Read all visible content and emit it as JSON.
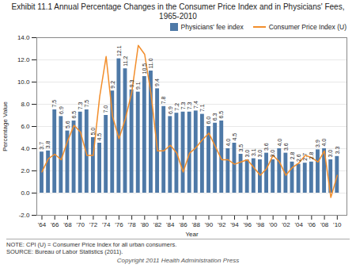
{
  "chart_data": {
    "type": "bar",
    "title": "Exhibit 11.1 Annual Percentage Changes in the Consumer Price Index and in Physicians' Fees,",
    "subtitle": "1965-2010",
    "xlabel": "Year",
    "ylabel": "Percentage Value",
    "annotations": [
      "NOTE: CPI (U) = Consumer Price Index for all urban consumers.",
      "SOURCE: Bureau of Labor Statistics (2011).",
      "Copyright 2011 Health Administration Press"
    ],
    "x": [
      1964,
      1965,
      1966,
      1967,
      1968,
      1969,
      1970,
      1971,
      1972,
      1973,
      1974,
      1975,
      1976,
      1977,
      1978,
      1979,
      1980,
      1981,
      1982,
      1983,
      1984,
      1985,
      1986,
      1987,
      1988,
      1989,
      1990,
      1991,
      1992,
      1993,
      1994,
      1995,
      1996,
      1997,
      1998,
      1999,
      2000,
      2001,
      2002,
      2003,
      2004,
      2005,
      2006,
      2007,
      2008,
      2009,
      2010
    ],
    "series": [
      {
        "name": "Physicians' fee index",
        "type": "bar",
        "values": [
          3.7,
          3.8,
          7.5,
          6.9,
          5.6,
          6.5,
          7.3,
          7.5,
          5.0,
          4.5,
          7.0,
          9.2,
          12.1,
          11.2,
          9.3,
          9.1,
          10.5,
          11.0,
          9.4,
          7.8,
          6.9,
          7.2,
          7.3,
          7.3,
          7.4,
          7.1,
          6.0,
          6.3,
          6.5,
          4.0,
          4.5,
          3.5,
          3.0,
          3.1,
          3.0,
          3.6,
          3.0,
          4.0,
          3.6,
          2.8,
          2.6,
          2.7,
          2.8,
          3.9,
          4.0,
          3.0,
          3.3
        ],
        "value_labels": [
          "3.7",
          "3.8",
          "7.5",
          "6.9",
          "5.6",
          "6.5",
          "7.3",
          "7.5",
          "5.0",
          "4.5",
          "7.0",
          "9.2",
          "12.1",
          "11.2",
          "9.3",
          "9.1",
          "10.5",
          "11.0",
          "9.4",
          "7.8",
          "6.9",
          "7.2",
          "7.3",
          "7.3",
          "7.4",
          "7.1",
          "6.0",
          "6.3",
          "6.5",
          "4.0",
          "4.5",
          "3.5",
          "3.0",
          "3.1",
          "3.0",
          "3.6",
          "3.0",
          "4.0",
          "3.6",
          "2.8",
          "2.6",
          "2.7",
          "2.8",
          "3.9",
          "4.0",
          "3.0",
          "3.3"
        ]
      },
      {
        "name": "Consumer Price Index (U)",
        "type": "line",
        "values": [
          1.9,
          3.1,
          3.5,
          3.0,
          4.7,
          6.1,
          5.5,
          3.4,
          3.4,
          8.7,
          12.3,
          6.9,
          4.9,
          6.7,
          9.1,
          13.3,
          12.5,
          8.9,
          3.8,
          3.8,
          4.3,
          3.6,
          1.9,
          3.6,
          4.1,
          4.8,
          5.4,
          4.2,
          3.0,
          3.0,
          2.6,
          2.8,
          3.0,
          2.3,
          1.6,
          2.2,
          3.4,
          2.8,
          1.6,
          2.3,
          2.7,
          3.4,
          3.2,
          2.8,
          3.8,
          -0.4,
          1.6
        ]
      }
    ],
    "xlim": [
      1963.2,
      2011.5
    ],
    "xticks": [
      {
        "value": 1964,
        "label": "'64"
      },
      {
        "value": 1966,
        "label": "'66"
      },
      {
        "value": 1968,
        "label": "'68"
      },
      {
        "value": 1970,
        "label": "'70"
      },
      {
        "value": 1972,
        "label": "'72"
      },
      {
        "value": 1974,
        "label": "'74"
      },
      {
        "value": 1976,
        "label": "'76"
      },
      {
        "value": 1978,
        "label": "'78"
      },
      {
        "value": 1980,
        "label": "'80"
      },
      {
        "value": 1982,
        "label": "'82"
      },
      {
        "value": 1984,
        "label": "'84"
      },
      {
        "value": 1986,
        "label": "'86"
      },
      {
        "value": 1988,
        "label": "'88"
      },
      {
        "value": 1990,
        "label": "'90"
      },
      {
        "value": 1992,
        "label": "'92"
      },
      {
        "value": 1994,
        "label": "'94"
      },
      {
        "value": 1996,
        "label": "'96"
      },
      {
        "value": 1998,
        "label": "'98"
      },
      {
        "value": 2000,
        "label": "'00"
      },
      {
        "value": 2002,
        "label": "'02"
      },
      {
        "value": 2004,
        "label": "'04"
      },
      {
        "value": 2006,
        "label": "'06"
      },
      {
        "value": 2008,
        "label": "'08"
      },
      {
        "value": 2010,
        "label": "'10"
      }
    ],
    "ylim": [
      -2.0,
      14.0
    ],
    "yticks": [
      {
        "value": -2.0,
        "label": "-2.0"
      },
      {
        "value": 0.0,
        "label": "0.0"
      },
      {
        "value": 2.0,
        "label": "2.0"
      },
      {
        "value": 4.0,
        "label": "4.0"
      },
      {
        "value": 6.0,
        "label": "6.0"
      },
      {
        "value": 8.0,
        "label": "8.0"
      },
      {
        "value": 10.0,
        "label": "10.0"
      },
      {
        "value": 12.0,
        "label": "12.0"
      },
      {
        "value": 14.0,
        "label": "14.0"
      }
    ],
    "grid": true,
    "legend": "upper right",
    "data_labels": true
  }
}
